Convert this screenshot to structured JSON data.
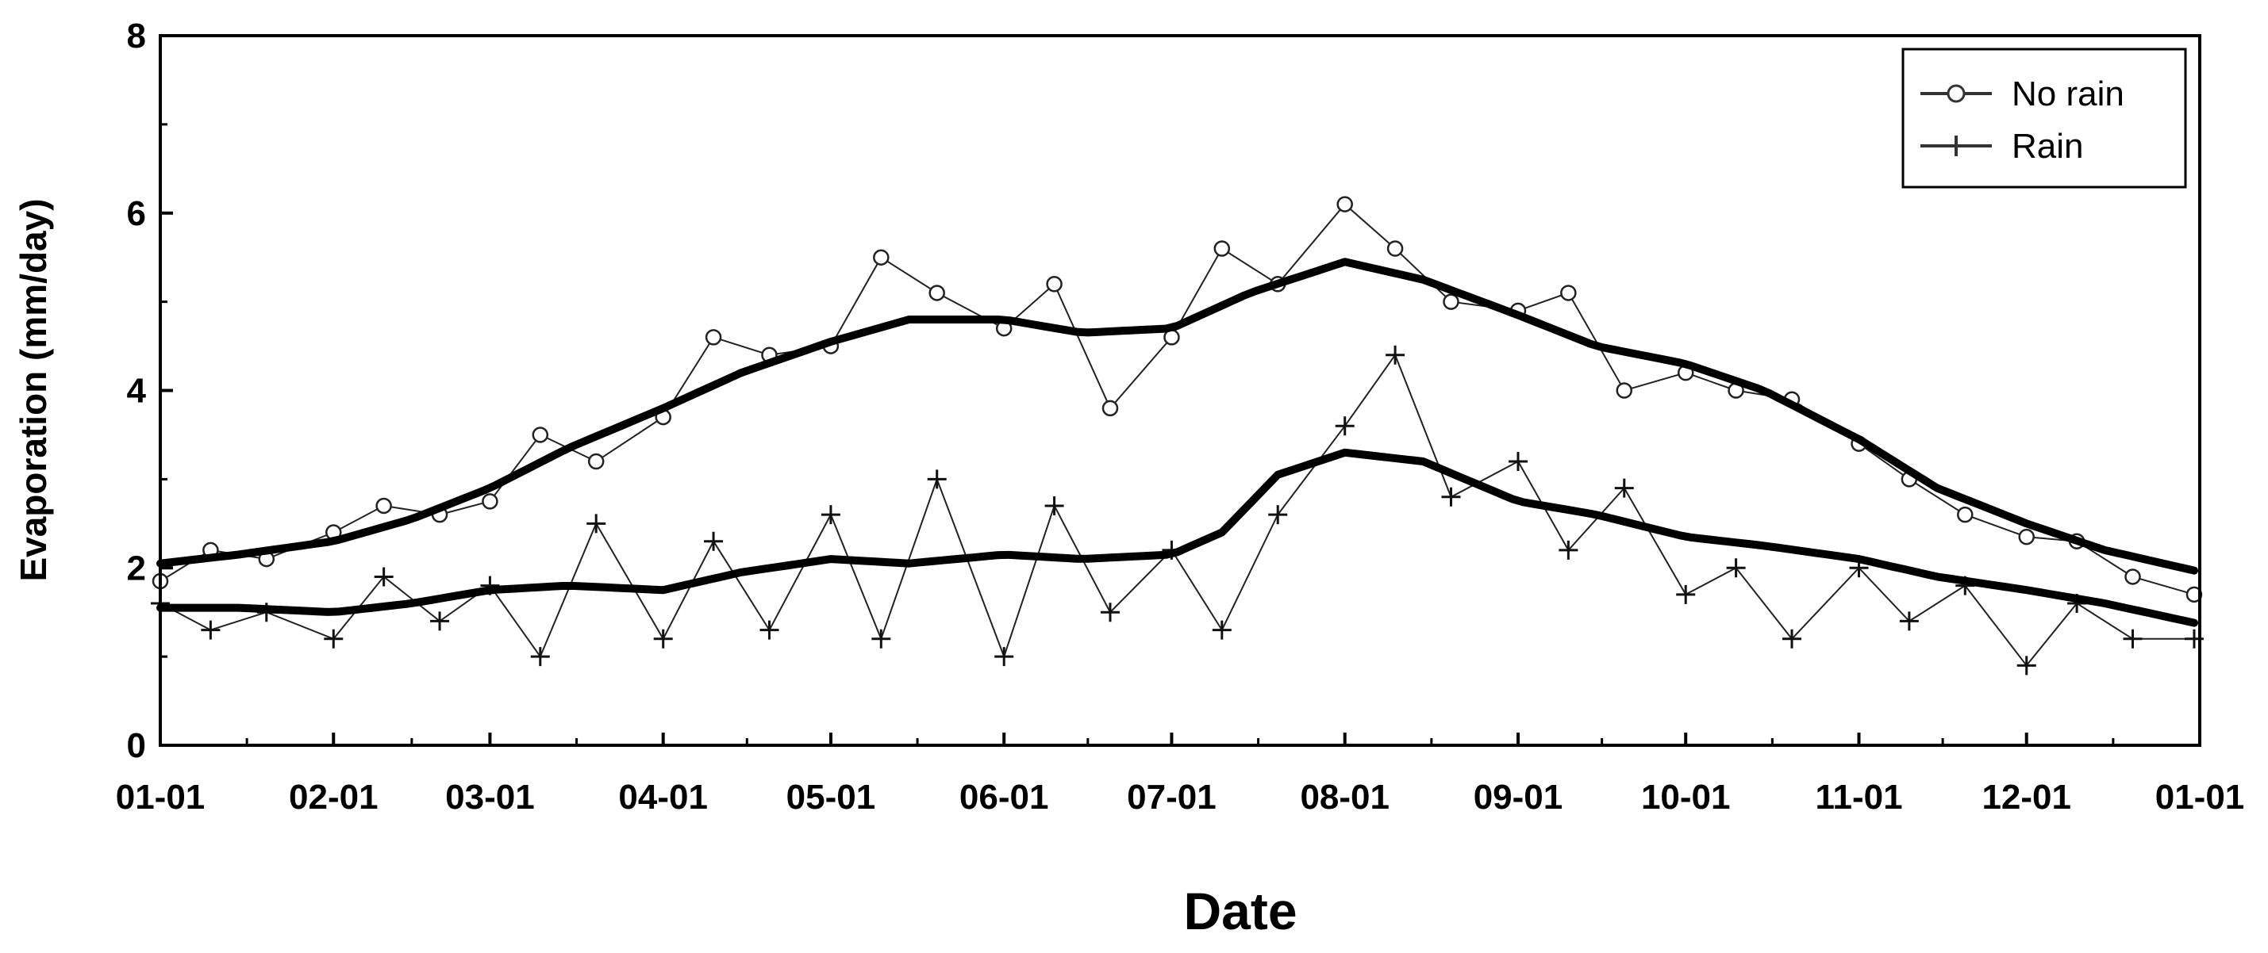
{
  "chart_data": {
    "type": "line",
    "title": "",
    "xlabel": "Date",
    "ylabel": "Evaporation (mm/day)",
    "xlim": [
      "01-01",
      "12-31"
    ],
    "ylim": [
      0,
      8
    ],
    "y_ticks": [
      "0",
      "2",
      "4",
      "6",
      "8"
    ],
    "x_tick_labels": [
      "01-01",
      "02-01",
      "03-01",
      "04-01",
      "05-01",
      "06-01",
      "07-01",
      "08-01",
      "09-01",
      "10-01",
      "11-01",
      "12-01",
      "01-01"
    ],
    "x_tick_day_of_year": [
      1,
      32,
      60,
      91,
      121,
      152,
      182,
      213,
      244,
      274,
      305,
      335,
      366
    ],
    "grid": false,
    "legend": {
      "position": "top-right",
      "entries": [
        {
          "label": "No rain",
          "marker": "circle"
        },
        {
          "label": "Rain",
          "marker": "plus"
        }
      ]
    },
    "series": [
      {
        "name": "No rain",
        "marker": "circle",
        "trend_x": [
          "01-01",
          "01-15",
          "02-01",
          "02-15",
          "03-01",
          "03-15",
          "04-01",
          "04-15",
          "05-01",
          "05-15",
          "06-01",
          "06-15",
          "07-01",
          "07-15",
          "08-01",
          "08-15",
          "09-01",
          "09-15",
          "10-01",
          "10-15",
          "11-01",
          "11-15",
          "12-01",
          "12-15",
          "12-31"
        ],
        "trend_y": [
          2.05,
          2.15,
          2.3,
          2.55,
          2.9,
          3.35,
          3.8,
          4.2,
          4.55,
          4.8,
          4.8,
          4.65,
          4.7,
          5.1,
          5.45,
          5.25,
          4.85,
          4.5,
          4.3,
          4.0,
          3.45,
          2.9,
          2.5,
          2.2,
          1.97
        ],
        "daily_x": [
          "01-01",
          "01-10",
          "01-20",
          "02-01",
          "02-10",
          "02-20",
          "03-01",
          "03-10",
          "03-20",
          "04-01",
          "04-10",
          "04-20",
          "05-01",
          "05-10",
          "05-20",
          "06-01",
          "06-10",
          "06-20",
          "07-01",
          "07-10",
          "07-20",
          "08-01",
          "08-10",
          "08-20",
          "09-01",
          "09-10",
          "09-20",
          "10-01",
          "10-10",
          "10-20",
          "11-01",
          "11-10",
          "11-20",
          "12-01",
          "12-10",
          "12-20",
          "12-31"
        ],
        "daily_y": [
          1.85,
          2.2,
          2.1,
          2.4,
          2.7,
          2.6,
          2.75,
          3.5,
          3.2,
          3.7,
          4.6,
          4.4,
          4.5,
          5.5,
          5.1,
          4.7,
          5.2,
          3.8,
          4.6,
          5.6,
          5.2,
          6.1,
          5.6,
          5.0,
          4.9,
          5.1,
          4.0,
          4.2,
          4.0,
          3.9,
          3.4,
          3.0,
          2.6,
          2.35,
          2.3,
          1.9,
          1.7
        ]
      },
      {
        "name": "Rain",
        "marker": "plus",
        "trend_x": [
          "01-01",
          "01-15",
          "02-01",
          "02-15",
          "03-01",
          "03-15",
          "04-01",
          "04-15",
          "05-01",
          "05-15",
          "06-01",
          "06-15",
          "07-01",
          "07-10",
          "07-20",
          "08-01",
          "08-15",
          "09-01",
          "09-15",
          "10-01",
          "10-15",
          "11-01",
          "11-15",
          "12-01",
          "12-15",
          "12-31"
        ],
        "trend_y": [
          1.55,
          1.55,
          1.5,
          1.6,
          1.75,
          1.8,
          1.75,
          1.95,
          2.1,
          2.05,
          2.15,
          2.1,
          2.15,
          2.4,
          3.05,
          3.3,
          3.2,
          2.75,
          2.6,
          2.35,
          2.25,
          2.1,
          1.9,
          1.75,
          1.6,
          1.38
        ],
        "daily_x": [
          "01-01",
          "01-10",
          "01-20",
          "02-01",
          "02-10",
          "02-20",
          "03-01",
          "03-10",
          "03-20",
          "04-01",
          "04-10",
          "04-20",
          "05-01",
          "05-10",
          "05-20",
          "06-01",
          "06-10",
          "06-20",
          "07-01",
          "07-10",
          "07-20",
          "08-01",
          "08-10",
          "08-20",
          "09-01",
          "09-10",
          "09-20",
          "10-01",
          "10-10",
          "10-20",
          "11-01",
          "11-10",
          "11-20",
          "12-01",
          "12-10",
          "12-20",
          "12-31"
        ],
        "daily_y": [
          1.6,
          1.3,
          1.5,
          1.2,
          1.9,
          1.4,
          1.8,
          1.0,
          2.5,
          1.2,
          2.3,
          1.3,
          2.6,
          1.2,
          3.0,
          1.0,
          2.7,
          1.5,
          2.2,
          1.3,
          2.6,
          3.6,
          4.4,
          2.8,
          3.2,
          2.2,
          2.9,
          1.7,
          2.0,
          1.2,
          2.0,
          1.4,
          1.8,
          0.9,
          1.6,
          1.2,
          1.2
        ]
      }
    ]
  }
}
